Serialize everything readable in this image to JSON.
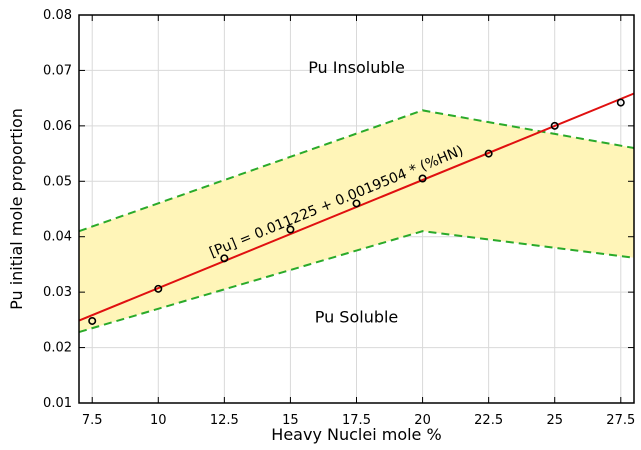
{
  "chart_data": {
    "type": "scatter",
    "xlabel": "Heavy Nuclei mole %",
    "ylabel": "Pu initial mole proportion",
    "xlim": [
      7,
      28
    ],
    "ylim": [
      0.01,
      0.08
    ],
    "x_ticks": [
      "7.5",
      "10",
      "12.5",
      "15",
      "17.5",
      "20",
      "22.5",
      "25",
      "27.5"
    ],
    "y_ticks": [
      "0.01",
      "0.02",
      "0.03",
      "0.04",
      "0.05",
      "0.06",
      "0.07",
      "0.08"
    ],
    "grid": true,
    "series": [
      {
        "x": [
          7.5,
          10,
          12.5,
          15,
          17.5,
          20,
          22.5,
          25,
          27.5
        ],
        "y": [
          0.0248,
          0.0306,
          0.0361,
          0.0413,
          0.046,
          0.0505,
          0.055,
          0.06,
          0.0642
        ],
        "color": "#000000",
        "marker": "circle"
      }
    ],
    "fit_line": {
      "intercept": 0.011225,
      "slope": 0.0019504,
      "color": "#e01010",
      "label": "[Pu] = 0.011225 + 0.0019504 * (%HN)"
    },
    "band": {
      "upper": {
        "x": [
          7,
          20,
          28
        ],
        "y": [
          0.041,
          0.0628,
          0.056
        ]
      },
      "lower": {
        "x": [
          7,
          20,
          28
        ],
        "y": [
          0.0228,
          0.041,
          0.0362
        ]
      },
      "fill": "#fff5b8",
      "edge_color": "#2aaa2a"
    },
    "annotations": [
      {
        "text": "Pu Insoluble",
        "x": 17.5,
        "y": 0.0695
      },
      {
        "text": "Pu Soluble",
        "x": 17.5,
        "y": 0.0245
      }
    ]
  }
}
